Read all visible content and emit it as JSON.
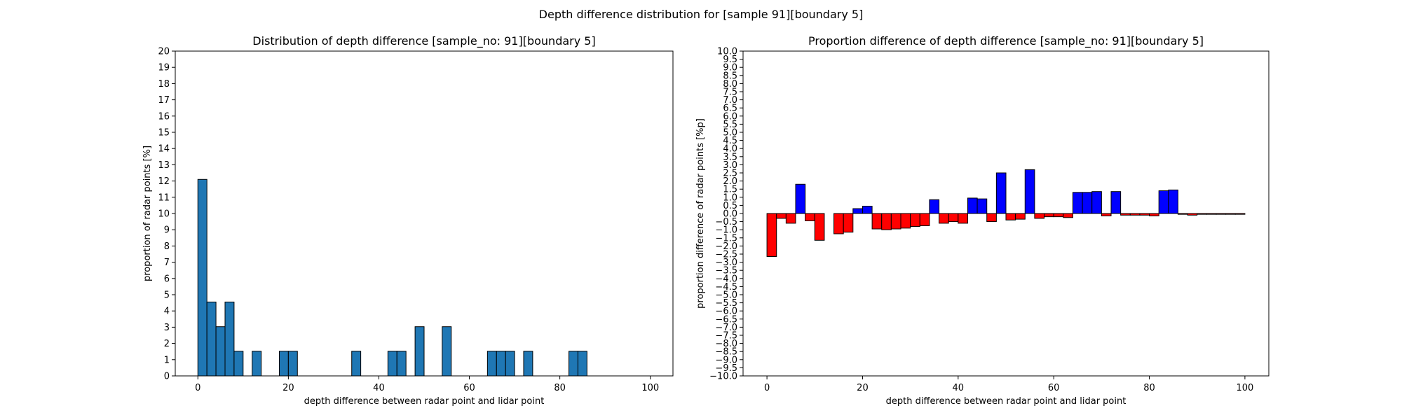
{
  "figure": {
    "suptitle": "Depth difference distribution for [sample 91][boundary 5]"
  },
  "chart_data": [
    {
      "type": "bar",
      "title": "Distribution of depth difference [sample_no: 91][boundary 5]",
      "xlabel": "depth difference between radar point and lidar point",
      "ylabel": "proportion of radar points [%]",
      "xlim": [
        -5,
        105
      ],
      "ylim": [
        0,
        20
      ],
      "xticks": [
        0,
        20,
        40,
        60,
        80,
        100
      ],
      "yticks": [
        0,
        1,
        2,
        3,
        4,
        5,
        6,
        7,
        8,
        9,
        10,
        11,
        12,
        13,
        14,
        15,
        16,
        17,
        18,
        19,
        20
      ],
      "bin_width": 2,
      "color": "#1f77b4",
      "edgecolor": "#000000",
      "bins": [
        {
          "x": 0,
          "value": 12.1
        },
        {
          "x": 2,
          "value": 4.55
        },
        {
          "x": 4,
          "value": 3.03
        },
        {
          "x": 6,
          "value": 4.55
        },
        {
          "x": 8,
          "value": 1.52
        },
        {
          "x": 12,
          "value": 1.52
        },
        {
          "x": 18,
          "value": 1.52
        },
        {
          "x": 20,
          "value": 1.52
        },
        {
          "x": 34,
          "value": 1.52
        },
        {
          "x": 42,
          "value": 1.52
        },
        {
          "x": 44,
          "value": 1.52
        },
        {
          "x": 48,
          "value": 3.03
        },
        {
          "x": 54,
          "value": 3.03
        },
        {
          "x": 64,
          "value": 1.52
        },
        {
          "x": 66,
          "value": 1.52
        },
        {
          "x": 68,
          "value": 1.52
        },
        {
          "x": 72,
          "value": 1.52
        },
        {
          "x": 82,
          "value": 1.52
        },
        {
          "x": 84,
          "value": 1.52
        }
      ]
    },
    {
      "type": "bar",
      "title": "Proportion difference of depth difference [sample_no: 91][boundary 5]",
      "xlabel": "depth difference between radar point and lidar point",
      "ylabel": "proportion difference of radar points [%p]",
      "xlim": [
        -5,
        105
      ],
      "ylim": [
        -10,
        10
      ],
      "xticks": [
        0,
        20,
        40,
        60,
        80,
        100
      ],
      "ytick_step": 0.5,
      "bin_width": 2,
      "positive_color": "#0000ff",
      "negative_color": "#ff0000",
      "edgecolor": "#000000",
      "bins": [
        {
          "x": 0,
          "value": -2.65
        },
        {
          "x": 2,
          "value": -0.3
        },
        {
          "x": 4,
          "value": -0.6
        },
        {
          "x": 6,
          "value": 1.8
        },
        {
          "x": 8,
          "value": -0.45
        },
        {
          "x": 10,
          "value": -1.65
        },
        {
          "x": 12,
          "value": 0.0
        },
        {
          "x": 14,
          "value": -1.25
        },
        {
          "x": 16,
          "value": -1.15
        },
        {
          "x": 18,
          "value": 0.3
        },
        {
          "x": 20,
          "value": 0.45
        },
        {
          "x": 22,
          "value": -0.95
        },
        {
          "x": 24,
          "value": -1.0
        },
        {
          "x": 26,
          "value": -0.95
        },
        {
          "x": 28,
          "value": -0.9
        },
        {
          "x": 30,
          "value": -0.8
        },
        {
          "x": 32,
          "value": -0.75
        },
        {
          "x": 34,
          "value": 0.85
        },
        {
          "x": 36,
          "value": -0.6
        },
        {
          "x": 38,
          "value": -0.5
        },
        {
          "x": 40,
          "value": -0.6
        },
        {
          "x": 42,
          "value": 0.95
        },
        {
          "x": 44,
          "value": 0.9
        },
        {
          "x": 46,
          "value": -0.5
        },
        {
          "x": 48,
          "value": 2.5
        },
        {
          "x": 50,
          "value": -0.4
        },
        {
          "x": 52,
          "value": -0.35
        },
        {
          "x": 54,
          "value": 2.7
        },
        {
          "x": 56,
          "value": -0.3
        },
        {
          "x": 58,
          "value": -0.2
        },
        {
          "x": 60,
          "value": -0.2
        },
        {
          "x": 62,
          "value": -0.25
        },
        {
          "x": 64,
          "value": 1.3
        },
        {
          "x": 66,
          "value": 1.3
        },
        {
          "x": 68,
          "value": 1.35
        },
        {
          "x": 70,
          "value": -0.15
        },
        {
          "x": 72,
          "value": 1.35
        },
        {
          "x": 74,
          "value": -0.1
        },
        {
          "x": 76,
          "value": -0.1
        },
        {
          "x": 78,
          "value": -0.1
        },
        {
          "x": 80,
          "value": -0.15
        },
        {
          "x": 82,
          "value": 1.4
        },
        {
          "x": 84,
          "value": 1.45
        },
        {
          "x": 86,
          "value": -0.05
        },
        {
          "x": 88,
          "value": -0.1
        },
        {
          "x": 90,
          "value": -0.05
        },
        {
          "x": 92,
          "value": -0.05
        },
        {
          "x": 94,
          "value": -0.05
        },
        {
          "x": 96,
          "value": -0.05
        },
        {
          "x": 98,
          "value": -0.05
        }
      ]
    }
  ]
}
